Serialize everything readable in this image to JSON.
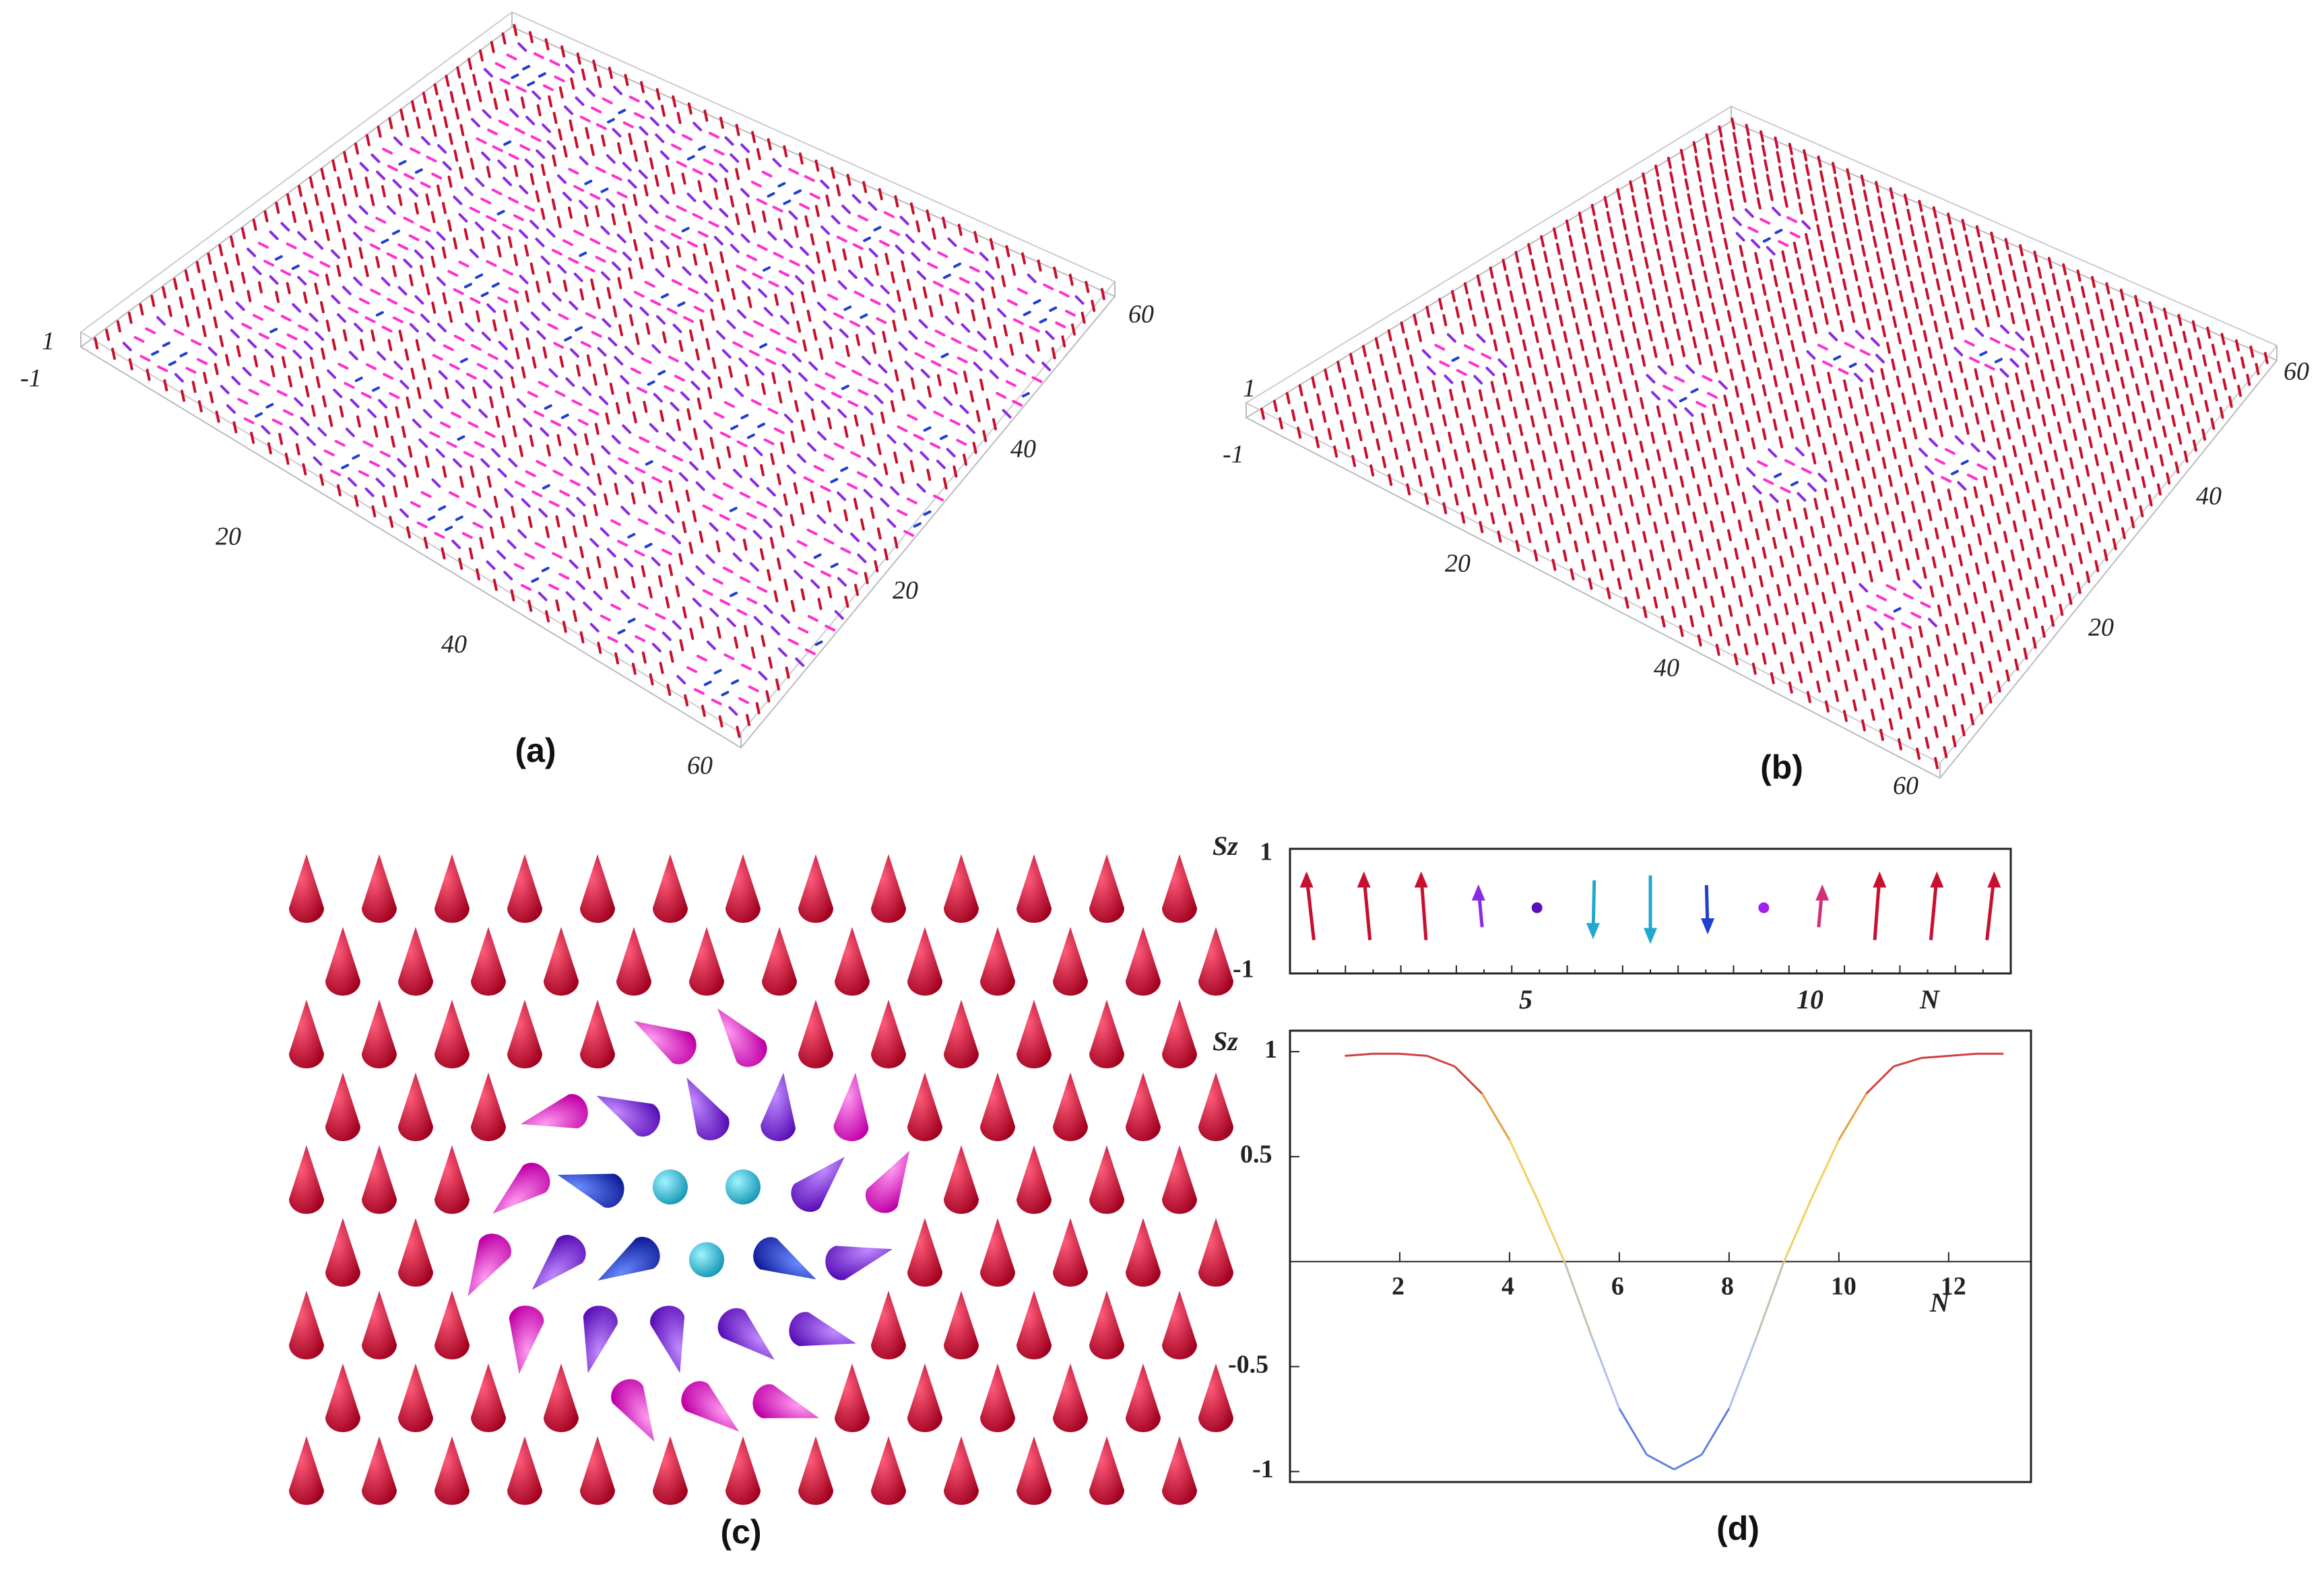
{
  "captions": {
    "a": "(a)",
    "b": "(b)",
    "c": "(c)",
    "d": "(d)"
  },
  "panel_a": {
    "z_ticks": [
      "1",
      "-1"
    ],
    "left_axis_ticks": [
      "20",
      "40",
      "60"
    ],
    "right_axis_ticks": [
      "20",
      "40",
      "60"
    ]
  },
  "panel_b": {
    "z_ticks": [
      "1",
      "-1"
    ],
    "left_axis_ticks": [
      "20",
      "40",
      "60"
    ],
    "right_axis_ticks": [
      "20",
      "40",
      "60"
    ]
  },
  "colors": {
    "up": "#c8102e",
    "mid": "#ff2fd0",
    "tilt": "#8a2be2",
    "down": "#1e3fd0",
    "core": "#22c8e0"
  },
  "chart_data": [
    {
      "type": "scatter",
      "panel": "d-top",
      "ylabel": "Sz",
      "xlabel": "N",
      "ylim": [
        -1,
        1
      ],
      "x_ticks": [
        "5",
        "10"
      ],
      "y_ticks": [
        "1",
        "-1"
      ],
      "x": [
        1,
        2,
        3,
        4,
        5,
        6,
        7,
        8,
        9,
        10,
        11,
        12,
        13
      ],
      "y": [
        1,
        1,
        1,
        0.6,
        0,
        -0.85,
        -1,
        -0.7,
        0.05,
        0.6,
        1,
        1,
        1
      ]
    },
    {
      "type": "line",
      "panel": "d-bottom",
      "ylabel": "Sz",
      "xlabel": "N",
      "xlim": [
        0,
        13.5
      ],
      "ylim": [
        -1.05,
        1.1
      ],
      "x_ticks": [
        "2",
        "4",
        "6",
        "8",
        "10",
        "12"
      ],
      "y_ticks": [
        "1",
        "0.5",
        "-0.5",
        "-1"
      ],
      "x": [
        1,
        1.5,
        2,
        2.5,
        3,
        3.5,
        4,
        4.5,
        5,
        5.5,
        6,
        6.5,
        7,
        7.5,
        8,
        8.5,
        9,
        9.5,
        10,
        10.5,
        11,
        11.5,
        12,
        12.5,
        13
      ],
      "y": [
        0.98,
        0.99,
        0.99,
        0.98,
        0.93,
        0.8,
        0.58,
        0.3,
        0.0,
        -0.36,
        -0.7,
        -0.92,
        -0.99,
        -0.92,
        -0.7,
        -0.36,
        0.0,
        0.3,
        0.58,
        0.8,
        0.93,
        0.97,
        0.98,
        0.99,
        0.99
      ]
    }
  ]
}
